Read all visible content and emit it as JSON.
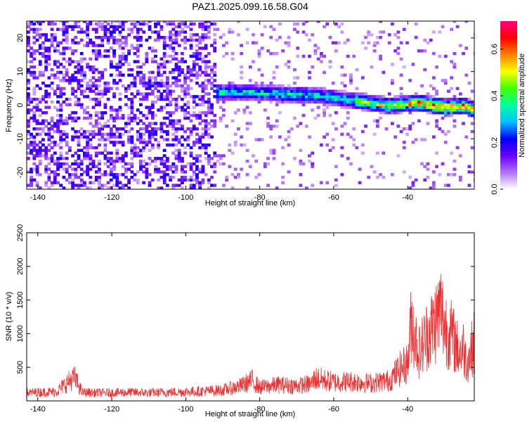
{
  "title": "PAZ1.2025.099.16.58.G04",
  "chart_data": [
    {
      "type": "heatmap",
      "xlabel": "Height of straight line (km)",
      "ylabel": "Frequency (Hz)",
      "xlim": [
        -143,
        -22
      ],
      "ylim": [
        -25,
        25
      ],
      "x_ticks": [
        -140,
        -120,
        -100,
        -80,
        -60,
        -40
      ],
      "y_ticks": [
        -20,
        -10,
        0,
        10,
        20
      ],
      "colorbar": {
        "label": "Normalized spectral amplitude",
        "range": [
          0.0,
          0.72
        ],
        "ticks": [
          0.0,
          0.2,
          0.4,
          0.6
        ],
        "colors": [
          "#ffffff",
          "#b070ff",
          "#6600ff",
          "#0000ff",
          "#00c0ff",
          "#00ffa0",
          "#40ff00",
          "#ffff00",
          "#ff8000",
          "#ff0000",
          "#ff0080"
        ]
      },
      "signal_track": {
        "description_points": [
          {
            "x": -92,
            "y": 3.5
          },
          {
            "x": -85,
            "y": 3.5
          },
          {
            "x": -75,
            "y": 3.0
          },
          {
            "x": -65,
            "y": 2.5
          },
          {
            "x": -55,
            "y": 1.0
          },
          {
            "x": -45,
            "y": -0.5
          },
          {
            "x": -38,
            "y": 0.5
          },
          {
            "x": -30,
            "y": -1.0
          },
          {
            "x": -25,
            "y": -0.5
          },
          {
            "x": -22,
            "y": -2.0
          }
        ]
      }
    },
    {
      "type": "line",
      "xlabel": "Height of straight line (km)",
      "ylabel": "SNR (10 * v/v)",
      "xlim": [
        -143,
        -22
      ],
      "ylim": [
        0,
        2500
      ],
      "x_ticks": [
        -140,
        -120,
        -100,
        -80,
        -60,
        -40
      ],
      "y_ticks": [
        500,
        1000,
        1500,
        2000,
        2500
      ],
      "series": [
        {
          "color": "#ee3030",
          "x": [
            -143,
            -140,
            -135,
            -131,
            -130,
            -128,
            -125,
            -120,
            -115,
            -110,
            -105,
            -100,
            -95,
            -90,
            -85,
            -82,
            -80,
            -75,
            -70,
            -66,
            -65,
            -60,
            -55,
            -50,
            -45,
            -42,
            -40,
            -39,
            -37,
            -35,
            -33,
            -31,
            -30,
            -28,
            -26,
            -25,
            -24,
            -22
          ],
          "y": [
            150,
            160,
            170,
            400,
            420,
            160,
            150,
            150,
            160,
            150,
            160,
            170,
            180,
            200,
            280,
            380,
            250,
            300,
            280,
            320,
            420,
            350,
            360,
            330,
            380,
            600,
            700,
            1500,
            900,
            1200,
            1400,
            1700,
            1400,
            1200,
            900,
            1000,
            700,
            1100
          ]
        }
      ]
    }
  ]
}
